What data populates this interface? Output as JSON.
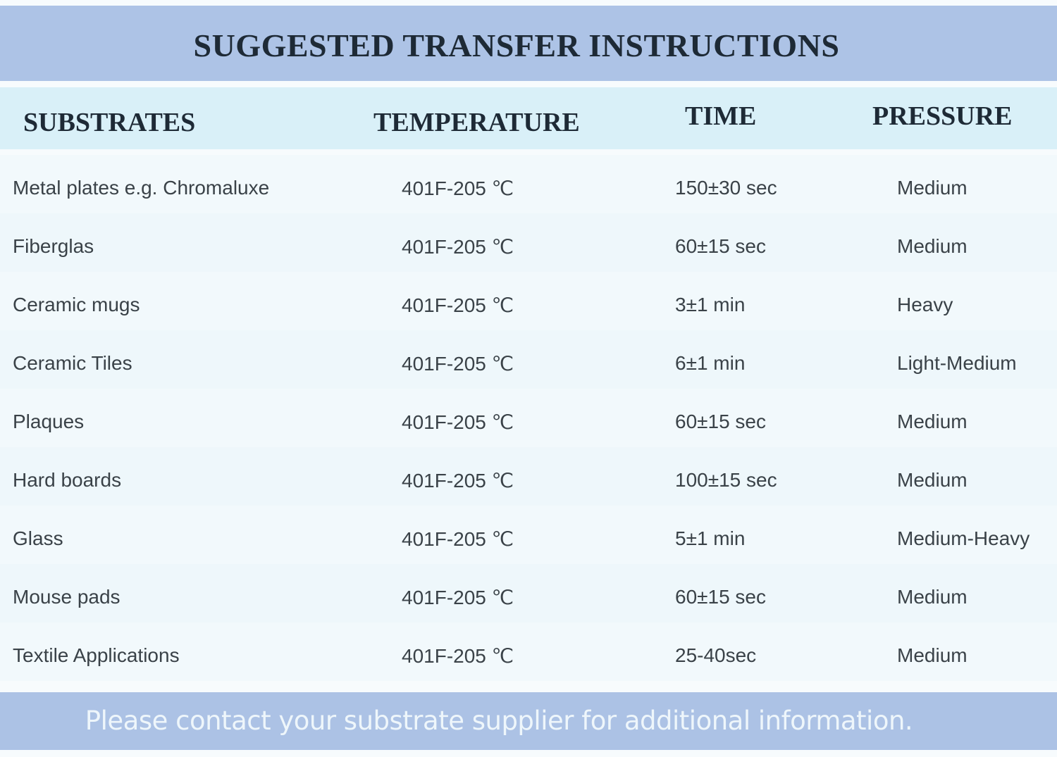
{
  "title": "SUGGESTED TRANSFER INSTRUCTIONS",
  "columns": [
    "SUBSTRATES",
    "TEMPERATURE",
    "TIME",
    "PRESSURE"
  ],
  "rows": [
    [
      "Metal plates e.g. Chromaluxe",
      "401F-205 ℃",
      "150±30 sec",
      "Medium"
    ],
    [
      "Fiberglas",
      "401F-205 ℃",
      "60±15 sec",
      "Medium"
    ],
    [
      "Ceramic mugs",
      "401F-205 ℃",
      "3±1 min",
      "Heavy"
    ],
    [
      "Ceramic Tiles",
      "401F-205 ℃",
      "6±1 min",
      "Light-Medium"
    ],
    [
      "Plaques",
      "401F-205 ℃",
      "60±15 sec",
      "Medium"
    ],
    [
      "Hard boards",
      "401F-205 ℃",
      "100±15 sec",
      "Medium"
    ],
    [
      "Glass",
      "401F-205 ℃",
      "5±1 min",
      "Medium-Heavy"
    ],
    [
      "Mouse pads",
      "401F-205 ℃",
      "60±15 sec",
      "Medium"
    ],
    [
      "Textile Applications",
      "401F-205 ℃",
      "25-40sec",
      "Medium"
    ]
  ],
  "footer": "Please contact your substrate supplier for additional information.",
  "colors": {
    "title_band": "#adc3e6",
    "header_band": "#d9f0f8",
    "footer_band": "#acc2e5"
  }
}
